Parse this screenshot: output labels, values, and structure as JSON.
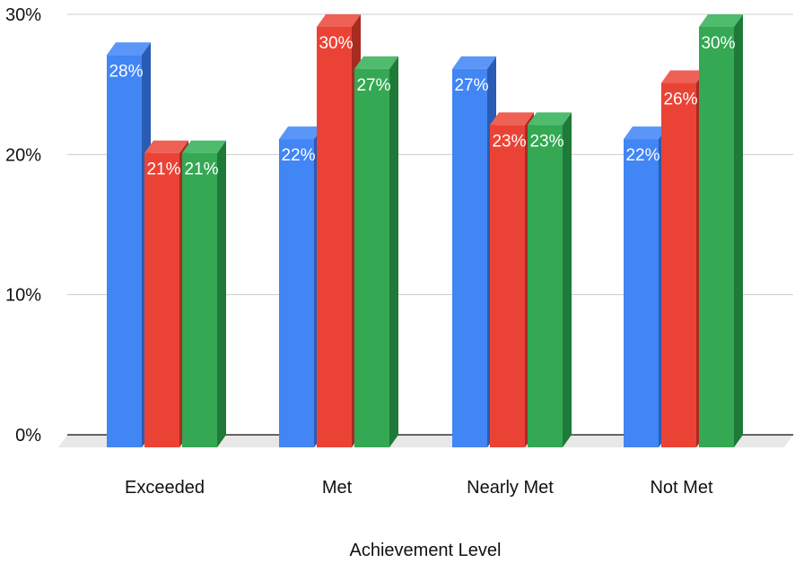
{
  "chart_data": {
    "type": "bar",
    "title": "",
    "xlabel": "Achievement Level",
    "ylabel": "",
    "ylim": [
      0,
      30
    ],
    "yticks": [
      "0%",
      "10%",
      "20%",
      "30%"
    ],
    "grid": true,
    "legend": "none",
    "style": "3d-clustered-bar",
    "categories": [
      "Exceeded",
      "Met",
      "Nearly Met",
      "Not Met"
    ],
    "series": [
      {
        "values": [
          28,
          22,
          27,
          22
        ],
        "labels": [
          "28%",
          "22%",
          "27%",
          "22%"
        ],
        "color": "#4285f4",
        "top_color": "#5b95f7",
        "side_color": "#2a5bb5"
      },
      {
        "values": [
          21,
          30,
          23,
          26
        ],
        "labels": [
          "21%",
          "30%",
          "23%",
          "26%"
        ],
        "color": "#ea4335",
        "top_color": "#ef6155",
        "side_color": "#a82b22"
      },
      {
        "values": [
          21,
          27,
          23,
          30
        ],
        "labels": [
          "21%",
          "27%",
          "23%",
          "30%"
        ],
        "color": "#34a853",
        "top_color": "#4fbb6c",
        "side_color": "#1f7a39"
      }
    ]
  }
}
